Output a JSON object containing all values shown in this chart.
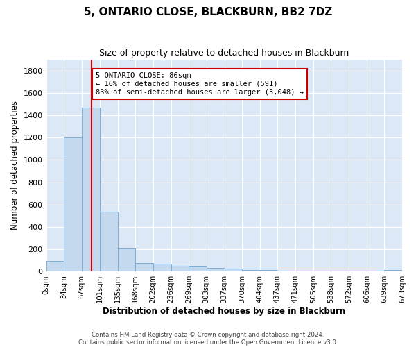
{
  "title": "5, ONTARIO CLOSE, BLACKBURN, BB2 7DZ",
  "subtitle": "Size of property relative to detached houses in Blackburn",
  "xlabel": "Distribution of detached houses by size in Blackburn",
  "ylabel": "Number of detached properties",
  "bar_color": "#c5d9ee",
  "bar_edge_color": "#7bafd4",
  "background_color": "#dce8f5",
  "grid_color": "#ffffff",
  "bin_edges": [
    0,
    34,
    67,
    101,
    135,
    168,
    202,
    236,
    269,
    303,
    337,
    370,
    404,
    437,
    471,
    505,
    538,
    572,
    606,
    639,
    673
  ],
  "bar_heights": [
    95,
    1200,
    1470,
    535,
    205,
    75,
    70,
    50,
    45,
    35,
    28,
    15,
    13,
    10,
    8,
    8,
    6,
    5,
    5,
    15
  ],
  "tick_labels": [
    "0sqm",
    "34sqm",
    "67sqm",
    "101sqm",
    "135sqm",
    "168sqm",
    "202sqm",
    "236sqm",
    "269sqm",
    "303sqm",
    "337sqm",
    "370sqm",
    "404sqm",
    "437sqm",
    "471sqm",
    "505sqm",
    "538sqm",
    "572sqm",
    "606sqm",
    "639sqm",
    "673sqm"
  ],
  "ylim": [
    0,
    1900
  ],
  "yticks": [
    0,
    200,
    400,
    600,
    800,
    1000,
    1200,
    1400,
    1600,
    1800
  ],
  "property_line_x": 86,
  "annotation_line1": "5 ONTARIO CLOSE: 86sqm",
  "annotation_line2": "← 16% of detached houses are smaller (591)",
  "annotation_line3": "83% of semi-detached houses are larger (3,048) →",
  "annotation_box_color": "#ffffff",
  "annotation_box_edge": "#cc0000",
  "red_line_color": "#cc0000",
  "footer_full": "Contains HM Land Registry data © Crown copyright and database right 2024.\nContains public sector information licensed under the Open Government Licence v3.0."
}
